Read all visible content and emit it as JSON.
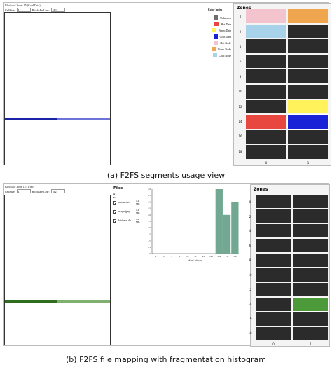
{
  "panel_a": {
    "block_title": "Blocks of Zone: 15 (Cold Data)",
    "cellsize_label": "CellSize:",
    "cellsize_value": "1",
    "blocksperline_label": "BlocksPerLine:",
    "blocksperline_value": "512",
    "legend": {
      "title": "Color Index",
      "items": [
        {
          "label": "Unknown",
          "color": "#6e6e6e"
        },
        {
          "label": "Hot Data",
          "color": "#e8473f"
        },
        {
          "label": "Warm Data",
          "color": "#fff25a"
        },
        {
          "label": "Cold Data",
          "color": "#1a22d8"
        },
        {
          "label": "Hot Node",
          "color": "#f3c4cd"
        },
        {
          "label": "Warm Node",
          "color": "#efa64f"
        },
        {
          "label": "Cold Node",
          "color": "#a7d2ea"
        }
      ]
    },
    "zones": {
      "title": "Zones",
      "row_labels": [
        "0",
        "2",
        "4",
        "6",
        "8",
        "10",
        "12",
        "14",
        "16",
        "18"
      ],
      "col_labels": [
        "0",
        "1"
      ],
      "cells": [
        [
          "#f3c4cd",
          "#efa64f"
        ],
        [
          "#a7d2ea",
          "#2b2b2b"
        ],
        [
          "#2b2b2b",
          "#2b2b2b"
        ],
        [
          "#2b2b2b",
          "#2b2b2b"
        ],
        [
          "#2b2b2b",
          "#2b2b2b"
        ],
        [
          "#2b2b2b",
          "#2b2b2b"
        ],
        [
          "#2b2b2b",
          "#fff25a"
        ],
        [
          "#e8473f",
          "#1a22d8"
        ],
        [
          "#2b2b2b",
          "#2b2b2b"
        ],
        [
          "#2b2b2b",
          "#2b2b2b"
        ]
      ],
      "selected_cell": [
        7,
        1
      ]
    },
    "usage_line": {
      "filled_color": "#1a22a8",
      "partial_color": "#6c72d8",
      "filled_fraction": 0.5,
      "row_fraction": 0.69
    },
    "caption": "(a) F2FS segments usage view"
  },
  "panel_b": {
    "block_title": "Blocks of Zone 15 (Tried)",
    "cellsize_label": "CellSize:",
    "cellsize_value": "1",
    "blocksperline_label": "BlocksPerLine:",
    "blocksperline_value": "512",
    "files": {
      "title": "Files",
      "nav_home": "⌂",
      "nav_back": "← ..",
      "items": [
        {
          "name": "normal.txt",
          "size": "1.4 MB"
        },
        {
          "name": "image.jpeg",
          "size": "1.4 MB"
        },
        {
          "name": "database.db",
          "size": "1.4 MB"
        }
      ]
    },
    "histogram": {
      "type": "bar",
      "xlabel": "# of blocks",
      "ylabel": "",
      "categories": [
        "1",
        "2",
        "4",
        "8",
        "16",
        "32",
        "64",
        "128",
        "256",
        "512",
        "1,024"
      ],
      "values": [
        0,
        0,
        0,
        0,
        0,
        0,
        0,
        0,
        5,
        3,
        4
      ],
      "ylim": [
        0,
        5
      ],
      "yticks": [
        "0",
        "0.5",
        "1.0",
        "1.5",
        "2.0",
        "2.5",
        "3.0",
        "3.5",
        "4.0",
        "4.5",
        "5.0"
      ],
      "bar_color": "#72a892"
    },
    "zones": {
      "title": "Zones",
      "row_labels": [
        "0",
        "2",
        "4",
        "6",
        "8",
        "10",
        "12",
        "14",
        "16",
        "18"
      ],
      "col_labels": [
        "0",
        "1"
      ],
      "cells": [
        [
          "#2b2b2b",
          "#2b2b2b"
        ],
        [
          "#2b2b2b",
          "#2b2b2b"
        ],
        [
          "#2b2b2b",
          "#2b2b2b"
        ],
        [
          "#2b2b2b",
          "#2b2b2b"
        ],
        [
          "#2b2b2b",
          "#2b2b2b"
        ],
        [
          "#2b2b2b",
          "#2b2b2b"
        ],
        [
          "#2b2b2b",
          "#2b2b2b"
        ],
        [
          "#2b2b2b",
          "#4d9a3b"
        ],
        [
          "#2b2b2b",
          "#2b2b2b"
        ],
        [
          "#2b2b2b",
          "#2b2b2b"
        ]
      ],
      "selected_cell": [
        7,
        1
      ]
    },
    "usage_line": {
      "filled_color": "#2f6e1f",
      "partial_color": "#7fb070",
      "filled_fraction": 0.5,
      "row_fraction": 0.705
    },
    "caption": "(b) F2FS file mapping with fragmentation histogram"
  }
}
